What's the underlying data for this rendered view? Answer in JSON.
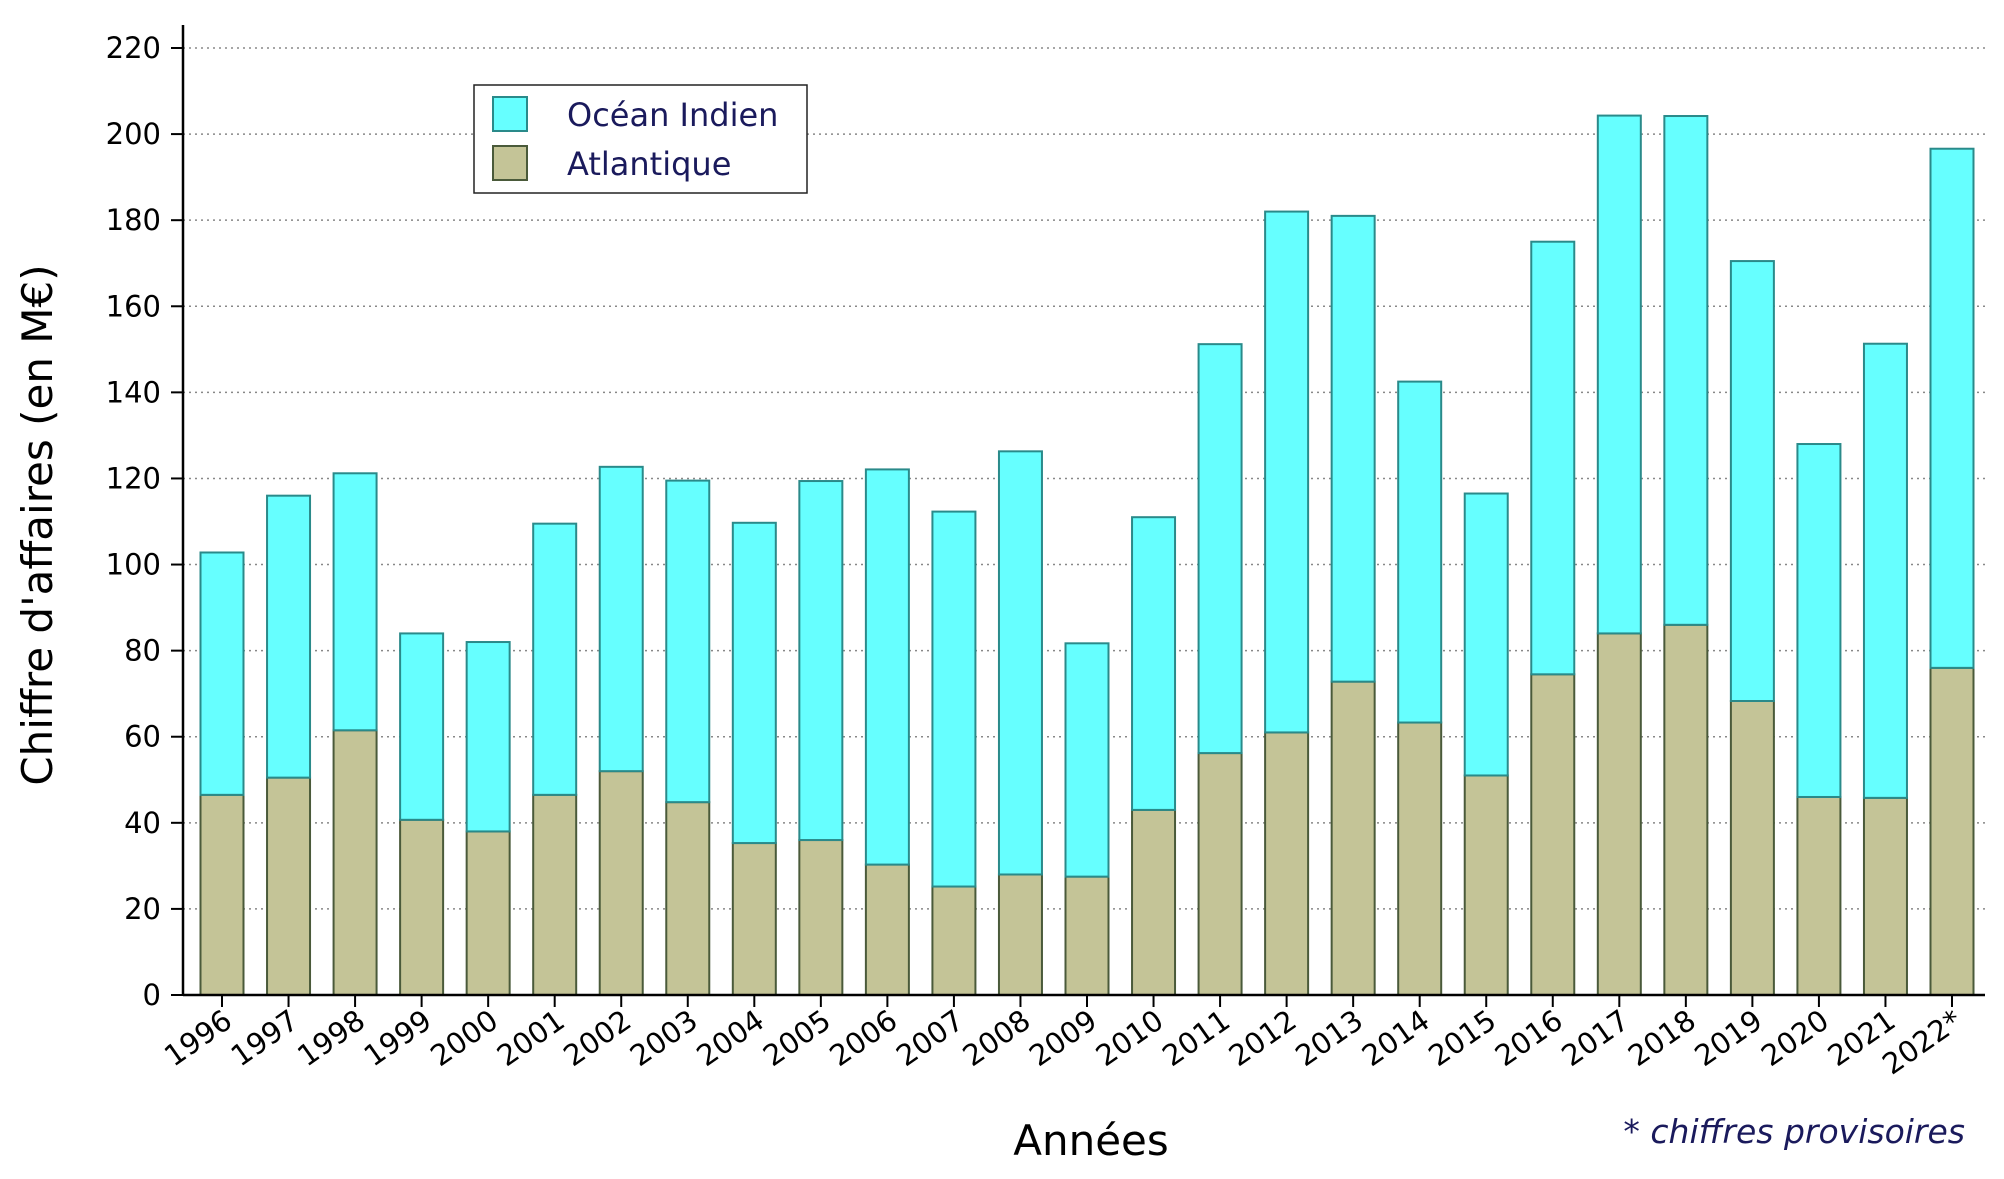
{
  "chart_data": {
    "type": "bar",
    "stacked": true,
    "categories": [
      "1996",
      "1997",
      "1998",
      "1999",
      "2000",
      "2001",
      "2002",
      "2003",
      "2004",
      "2005",
      "2006",
      "2007",
      "2008",
      "2009",
      "2010",
      "2011",
      "2012",
      "2013",
      "2014",
      "2015",
      "2016",
      "2017",
      "2018",
      "2019",
      "2020",
      "2021",
      "2022*"
    ],
    "series": [
      {
        "name": "Atlantique",
        "color": "#c4c497",
        "edge_color": "#4a5a3a",
        "values": [
          46.5,
          50.5,
          61.5,
          40.7,
          38.0,
          46.5,
          52.0,
          44.8,
          35.3,
          36.0,
          30.3,
          25.2,
          28.0,
          27.5,
          43.0,
          56.2,
          61.0,
          72.8,
          63.3,
          51.0,
          74.5,
          84.0,
          86.0,
          68.3,
          46.0,
          45.8,
          76.0
        ]
      },
      {
        "name": "Océan Indien",
        "color": "#66ffff",
        "edge_color": "#2a8a8a",
        "values": [
          56.3,
          65.5,
          59.7,
          43.3,
          44.0,
          63.0,
          70.7,
          74.7,
          74.4,
          83.4,
          91.8,
          87.1,
          98.3,
          54.2,
          68.0,
          95.0,
          121.0,
          108.2,
          79.2,
          65.5,
          100.5,
          120.3,
          118.2,
          102.2,
          82.0,
          105.5,
          120.6
        ]
      }
    ],
    "ylabel": "Chiffre d'affaires (en M€)",
    "xlabel": "Années",
    "ylim": [
      0,
      220
    ],
    "yticks": [
      0,
      20,
      40,
      60,
      80,
      100,
      120,
      140,
      160,
      180,
      200,
      220
    ],
    "grid": "horizontal-dotted",
    "legend_position": "top-left",
    "legend_order": [
      "Océan Indien",
      "Atlantique"
    ],
    "note": "* chiffres provisoires"
  }
}
